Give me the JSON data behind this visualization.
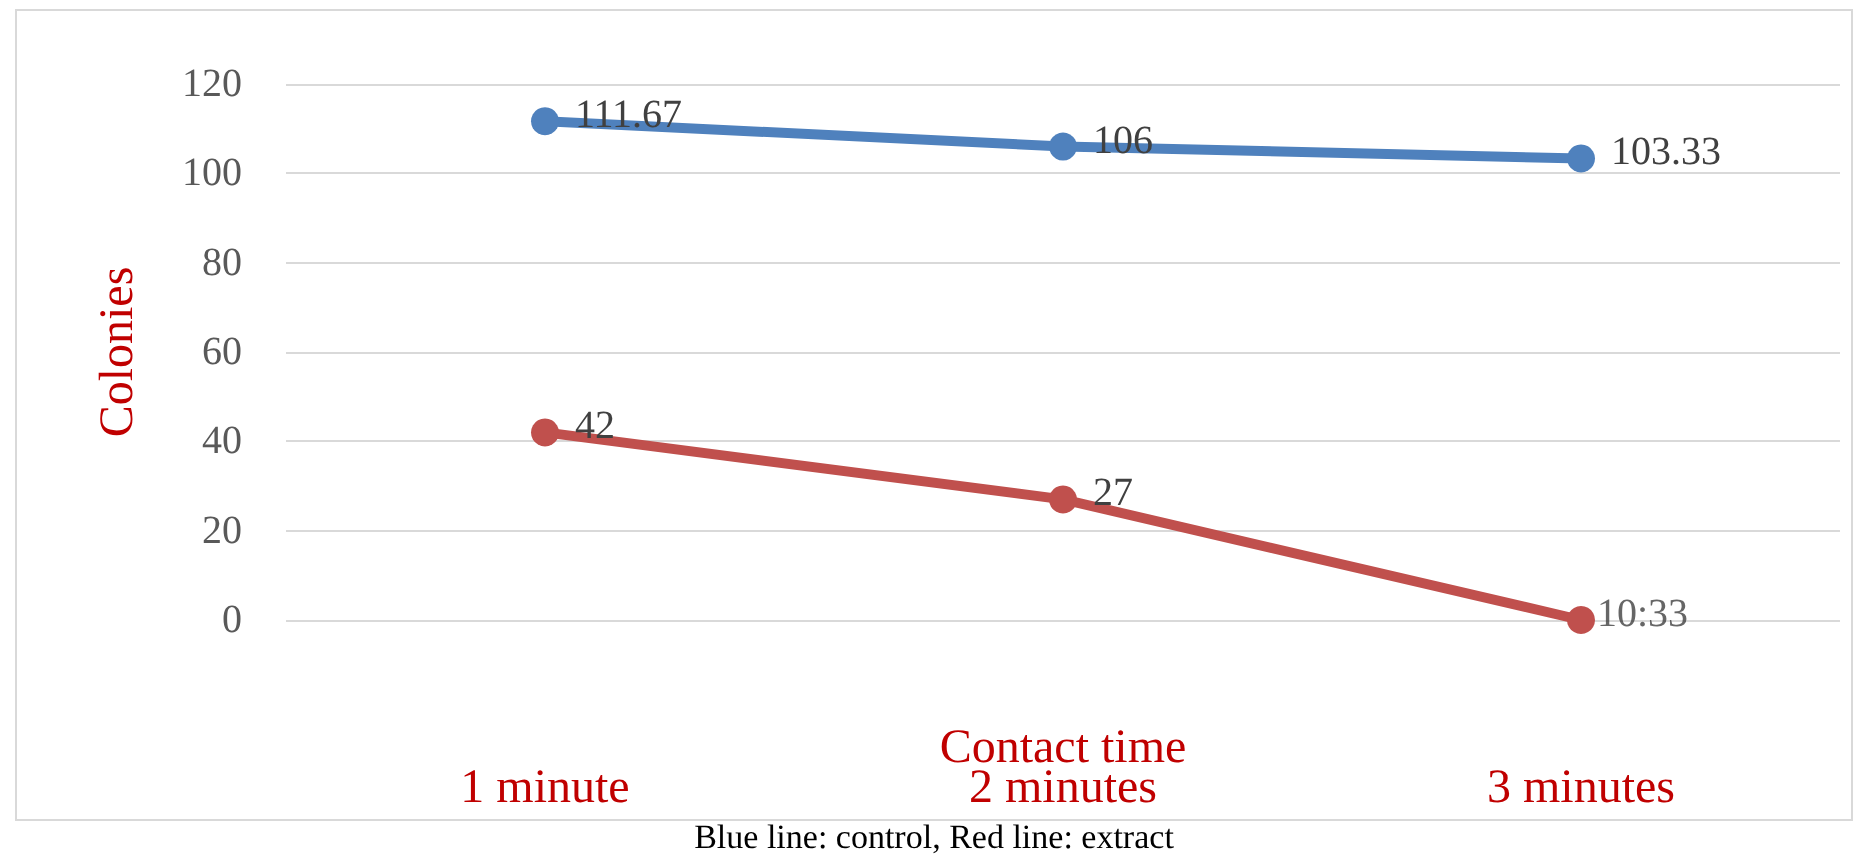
{
  "chart_data": {
    "type": "line",
    "xlabel": "Contact time",
    "ylabel": "Colonies",
    "categories": [
      "1 minute",
      "2 minutes",
      "3 minutes"
    ],
    "series": [
      {
        "color": "#4f81bd",
        "values": [
          111.67,
          106,
          103.33
        ],
        "value_labels": [
          "111.67",
          "106",
          "103.33"
        ]
      },
      {
        "color": "#c0504d",
        "values": [
          42,
          27,
          0
        ],
        "value_labels": [
          "42",
          "27",
          null
        ]
      }
    ],
    "ylim": [
      0,
      120
    ],
    "yticks": [
      0,
      20,
      40,
      60,
      80,
      100,
      120
    ],
    "grid": "y",
    "marker": "circle",
    "line_style": "solid",
    "annotations": [
      {
        "text": "10:33",
        "x": "3 minutes",
        "y": 0
      },
      "Blue line: control, Red line: extract"
    ]
  }
}
